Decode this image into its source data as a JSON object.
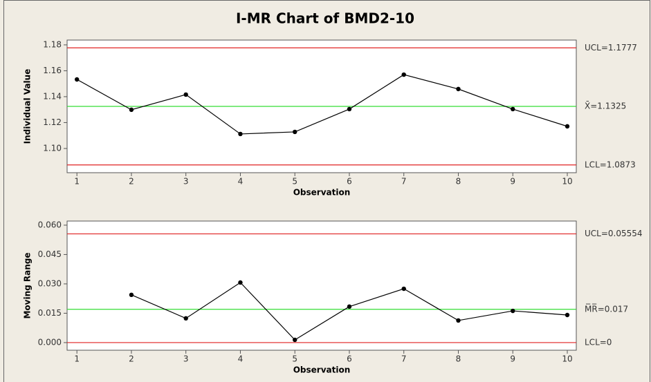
{
  "title": "I-MR Chart of BMD2-10",
  "chart_data": [
    {
      "type": "line",
      "x_label": "Observation",
      "y_label": "Individual Value",
      "x": [
        1,
        2,
        3,
        4,
        5,
        6,
        7,
        8,
        9,
        10
      ],
      "series": [
        {
          "color": "#000000",
          "values": [
            1.1533,
            1.1299,
            1.1416,
            1.1112,
            1.1128,
            1.1304,
            1.157,
            1.1459,
            1.1304,
            1.1171
          ]
        }
      ],
      "control_lines": [
        {
          "value": 1.1777,
          "label": "UCL=1.1777",
          "color": "#e02020"
        },
        {
          "value": 1.1325,
          "label": "X̄=1.1325",
          "color": "#33dd33"
        },
        {
          "value": 1.0873,
          "label": "LCL=1.0873",
          "color": "#e02020"
        }
      ],
      "xlim": [
        0.82,
        10.165
      ],
      "xticks": [
        1,
        2,
        3,
        4,
        5,
        6,
        7,
        8,
        9,
        10
      ],
      "ylim": [
        1.0813,
        1.1837
      ],
      "yticks": [
        {
          "value": 1.1,
          "label": "1.10"
        },
        {
          "value": 1.12,
          "label": "1.12"
        },
        {
          "value": 1.14,
          "label": "1.14"
        },
        {
          "value": 1.16,
          "label": "1.16"
        },
        {
          "value": 1.18,
          "label": "1.18"
        }
      ]
    },
    {
      "type": "line",
      "x_label": "Observation",
      "y_label": "Moving Range",
      "x": [
        1,
        2,
        3,
        4,
        5,
        6,
        7,
        8,
        9,
        10
      ],
      "series": [
        {
          "color": "#000000",
          "values": [
            null,
            0.0244,
            0.0124,
            0.0307,
            0.0014,
            0.0184,
            0.0275,
            0.0113,
            0.0162,
            0.0141
          ]
        }
      ],
      "control_lines": [
        {
          "value": 0.05554,
          "label": "UCL=0.05554",
          "color": "#e02020"
        },
        {
          "value": 0.017,
          "label": "M̅R̅=0.017",
          "color": "#33dd33"
        },
        {
          "value": 0,
          "label": "LCL=0",
          "color": "#e02020"
        }
      ],
      "xlim": [
        0.82,
        10.165
      ],
      "xticks": [
        1,
        2,
        3,
        4,
        5,
        6,
        7,
        8,
        9,
        10
      ],
      "ylim": [
        -0.0039,
        0.0621
      ],
      "yticks": [
        {
          "value": 0,
          "label": "0.000"
        },
        {
          "value": 0.015,
          "label": "0.015"
        },
        {
          "value": 0.03,
          "label": "0.030"
        },
        {
          "value": 0.045,
          "label": "0.045"
        },
        {
          "value": 0.06,
          "label": "0.060"
        }
      ]
    }
  ]
}
